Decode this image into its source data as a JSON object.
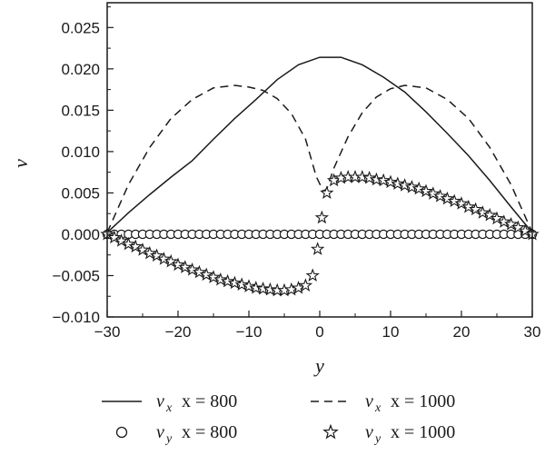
{
  "chart_data": {
    "type": "line",
    "xlabel": "y",
    "ylabel": "v",
    "xlim": [
      -30,
      30
    ],
    "ylim": [
      -0.01,
      0.028
    ],
    "x_ticks": [
      -30,
      -20,
      -10,
      0,
      10,
      20,
      30
    ],
    "x_tick_labels": [
      "−30",
      "−20",
      "−10",
      "0",
      "10",
      "20",
      "30"
    ],
    "y_ticks": [
      -0.01,
      -0.005,
      0,
      0.005,
      0.01,
      0.015,
      0.02,
      0.025
    ],
    "y_tick_labels": [
      "−0.010",
      "−0.005",
      "0.000",
      "0.005",
      "0.010",
      "0.015",
      "0.020",
      "0.025"
    ],
    "grid": false,
    "legend_position": "bottom",
    "series": [
      {
        "key": "vx800",
        "name": "v_x x = 800",
        "legend": {
          "var": "v",
          "sub": "x",
          "rest": "x = 800"
        },
        "style": "solid",
        "x": [
          -30,
          -27,
          -24,
          -21,
          -18,
          -15,
          -12,
          -9,
          -6,
          -3,
          0,
          3,
          6,
          9,
          12,
          15,
          18,
          21,
          24,
          27,
          30
        ],
        "y": [
          0.0002,
          0.0026,
          0.0048,
          0.0069,
          0.0089,
          0.0115,
          0.014,
          0.0163,
          0.0187,
          0.0205,
          0.0214,
          0.0214,
          0.0205,
          0.019,
          0.0172,
          0.0148,
          0.0122,
          0.0095,
          0.0065,
          0.0033,
          0.0002
        ]
      },
      {
        "key": "vx1000",
        "name": "v_x x = 1000",
        "legend": {
          "var": "v",
          "sub": "x",
          "rest": "x = 1000"
        },
        "style": "dashed",
        "x": [
          -30,
          -27,
          -24,
          -21,
          -18,
          -15,
          -12,
          -10,
          -8,
          -6,
          -4,
          -2,
          -0.5,
          0.5,
          1,
          2,
          4,
          6,
          8,
          10,
          12,
          15,
          18,
          21,
          24,
          27,
          30
        ],
        "y": [
          0.0002,
          0.006,
          0.0105,
          0.014,
          0.0163,
          0.0177,
          0.018,
          0.0178,
          0.0174,
          0.0164,
          0.0146,
          0.0115,
          0.007,
          0.0052,
          0.0055,
          0.008,
          0.0118,
          0.0147,
          0.0166,
          0.0176,
          0.018,
          0.0177,
          0.0163,
          0.014,
          0.0105,
          0.006,
          0.0002
        ]
      },
      {
        "key": "vy800",
        "name": "v_y x = 800",
        "legend": {
          "var": "v",
          "sub": "y",
          "rest": "x = 800"
        },
        "style": "circle",
        "x": [
          -30,
          -29,
          -28,
          -27,
          -26,
          -25,
          -24,
          -23,
          -22,
          -21,
          -20,
          -19,
          -18,
          -17,
          -16,
          -15,
          -14,
          -13,
          -12,
          -11,
          -10,
          -9,
          -8,
          -7,
          -6,
          -5,
          -4,
          -3,
          -2,
          -1,
          0,
          1,
          2,
          3,
          4,
          5,
          6,
          7,
          8,
          9,
          10,
          11,
          12,
          13,
          14,
          15,
          16,
          17,
          18,
          19,
          20,
          21,
          22,
          23,
          24,
          25,
          26,
          27,
          28,
          29,
          30
        ],
        "y": [
          0,
          0,
          0,
          0,
          0,
          0,
          0,
          0,
          0,
          0,
          0,
          0,
          0,
          0,
          0,
          0,
          0,
          0,
          0,
          0,
          0,
          0,
          0,
          0,
          0,
          0,
          0,
          0,
          0,
          0,
          0,
          0,
          0,
          0,
          0,
          0,
          0,
          0,
          0,
          0,
          0,
          0,
          0,
          0,
          0,
          0,
          0,
          0,
          0,
          0,
          0,
          0,
          0,
          0,
          0,
          0,
          0,
          0,
          0,
          0,
          0
        ]
      },
      {
        "key": "vy1000",
        "name": "v_y x = 1000",
        "legend": {
          "var": "v",
          "sub": "y",
          "rest": "x = 1000"
        },
        "style": "star",
        "x": [
          -30,
          -29,
          -28,
          -27,
          -26,
          -25,
          -24,
          -23,
          -22,
          -21,
          -20,
          -19,
          -18,
          -17,
          -16,
          -15,
          -14,
          -13,
          -12,
          -11,
          -10,
          -9,
          -8,
          -7,
          -6,
          -5,
          -4,
          -3,
          -2,
          -1,
          -0.3,
          0.3,
          1,
          2,
          3,
          4,
          5,
          6,
          7,
          8,
          9,
          10,
          11,
          12,
          13,
          14,
          15,
          16,
          17,
          18,
          19,
          20,
          21,
          22,
          23,
          24,
          25,
          26,
          27,
          28,
          29,
          30
        ],
        "y": [
          0,
          -0.0004,
          -0.0008,
          -0.0012,
          -0.0015,
          -0.0019,
          -0.0023,
          -0.0026,
          -0.003,
          -0.0033,
          -0.0037,
          -0.004,
          -0.0043,
          -0.0046,
          -0.0049,
          -0.0052,
          -0.0055,
          -0.0057,
          -0.0059,
          -0.0061,
          -0.0063,
          -0.0065,
          -0.0066,
          -0.0067,
          -0.0068,
          -0.0068,
          -0.0067,
          -0.0065,
          -0.0062,
          -0.005,
          -0.0018,
          0.002,
          0.005,
          0.0065,
          0.0068,
          0.0069,
          0.0069,
          0.0069,
          0.0068,
          0.0066,
          0.0065,
          0.0063,
          0.0061,
          0.0059,
          0.0057,
          0.0055,
          0.0052,
          0.0049,
          0.0046,
          0.0043,
          0.004,
          0.0037,
          0.0033,
          0.003,
          0.0026,
          0.0023,
          0.0019,
          0.0015,
          0.0012,
          0.0008,
          0.0004,
          0
        ]
      }
    ]
  }
}
